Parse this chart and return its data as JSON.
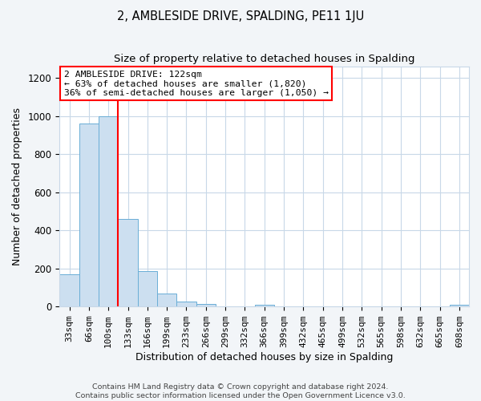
{
  "title": "2, AMBLESIDE DRIVE, SPALDING, PE11 1JU",
  "subtitle": "Size of property relative to detached houses in Spalding",
  "xlabel": "Distribution of detached houses by size in Spalding",
  "ylabel": "Number of detached properties",
  "bar_labels": [
    "33sqm",
    "66sqm",
    "100sqm",
    "133sqm",
    "166sqm",
    "199sqm",
    "233sqm",
    "266sqm",
    "299sqm",
    "332sqm",
    "366sqm",
    "399sqm",
    "432sqm",
    "465sqm",
    "499sqm",
    "532sqm",
    "565sqm",
    "598sqm",
    "632sqm",
    "665sqm",
    "698sqm"
  ],
  "bar_values": [
    170,
    960,
    1000,
    460,
    185,
    70,
    25,
    15,
    0,
    0,
    10,
    0,
    0,
    0,
    0,
    0,
    0,
    0,
    0,
    0,
    10
  ],
  "bar_color": "#ccdff0",
  "bar_edge_color": "#6aaed6",
  "vline_x": 2.5,
  "vline_color": "red",
  "annotation_text": "2 AMBLESIDE DRIVE: 122sqm\n← 63% of detached houses are smaller (1,820)\n36% of semi-detached houses are larger (1,050) →",
  "annotation_box_color": "white",
  "annotation_box_edge": "red",
  "ylim": [
    0,
    1260
  ],
  "yticks": [
    0,
    200,
    400,
    600,
    800,
    1000,
    1200
  ],
  "footer_line1": "Contains HM Land Registry data © Crown copyright and database right 2024.",
  "footer_line2": "Contains public sector information licensed under the Open Government Licence v3.0.",
  "bg_color": "#f2f5f8",
  "plot_bg_color": "#ffffff",
  "grid_color": "#c8d8e8",
  "title_fontsize": 10.5,
  "subtitle_fontsize": 9.5,
  "annotation_fontsize": 8.2,
  "xlabel_fontsize": 9,
  "ylabel_fontsize": 9,
  "tick_fontsize": 8,
  "footer_fontsize": 6.8
}
